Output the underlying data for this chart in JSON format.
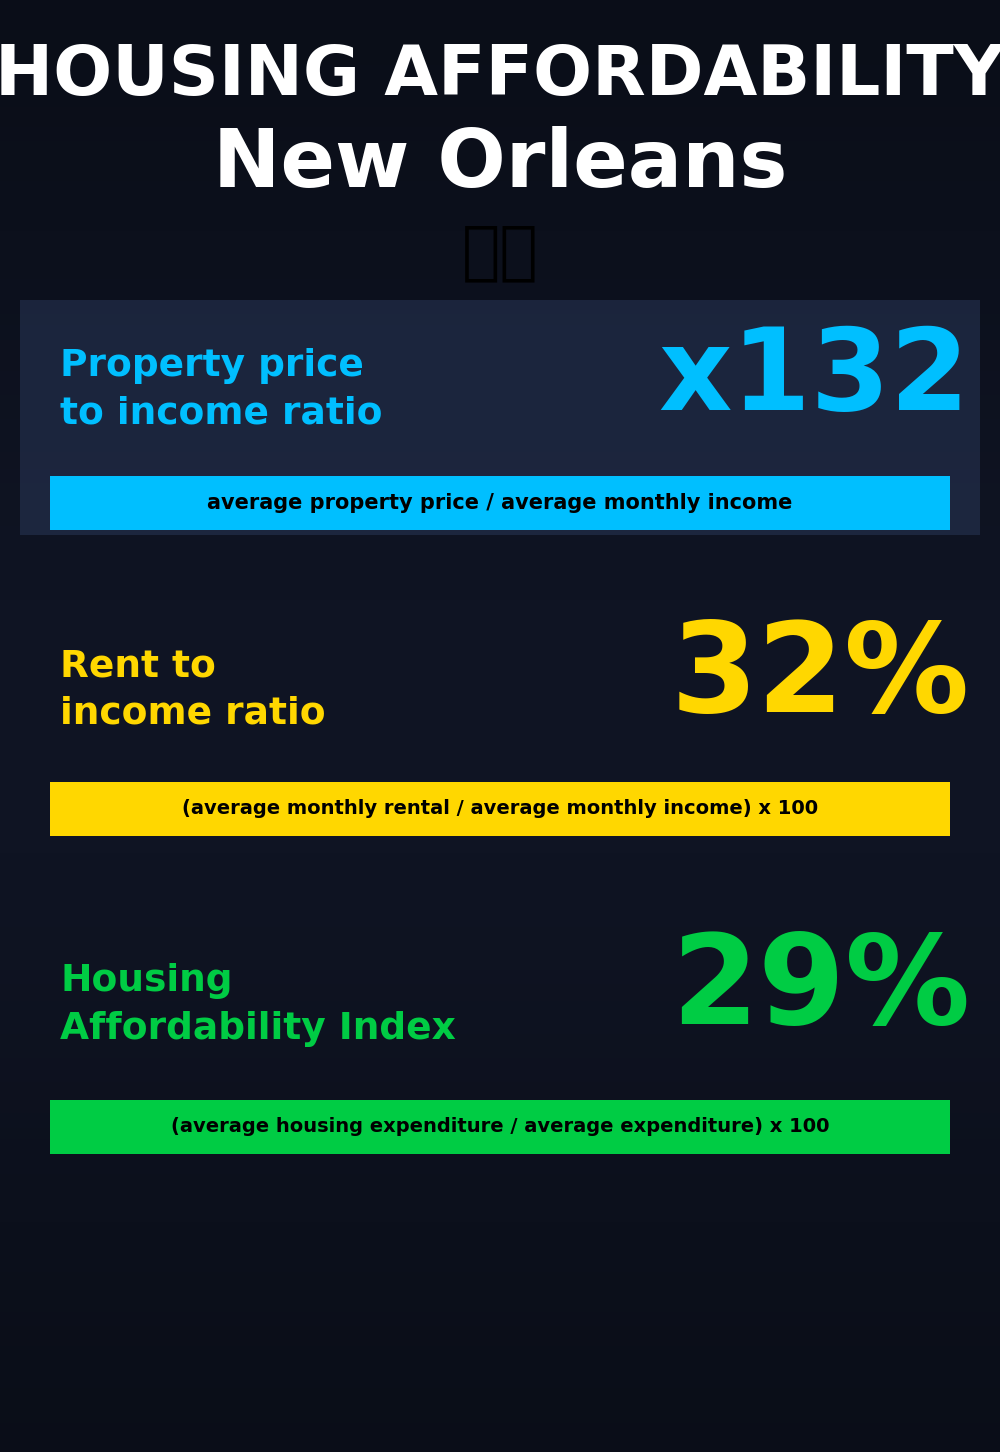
{
  "title_line1": "HOUSING AFFORDABILITY",
  "title_line2": "New Orleans",
  "flag_emoji": "🇺🇸",
  "section1_label": "Property price\nto income ratio",
  "section1_value": "x132",
  "section1_label_color": "#00BFFF",
  "section1_value_color": "#00BFFF",
  "section1_banner_text": "average property price / average monthly income",
  "section1_banner_bg": "#00BFFF",
  "section1_banner_text_color": "#000000",
  "section2_label": "Rent to\nincome ratio",
  "section2_value": "32%",
  "section2_label_color": "#FFD700",
  "section2_value_color": "#FFD700",
  "section2_banner_text": "(average monthly rental / average monthly income) x 100",
  "section2_banner_bg": "#FFD700",
  "section2_banner_text_color": "#000000",
  "section3_label": "Housing\nAffordability Index",
  "section3_value": "29%",
  "section3_label_color": "#00CC44",
  "section3_value_color": "#00CC44",
  "section3_banner_text": "(average housing expenditure / average expenditure) x 100",
  "section3_banner_bg": "#00CC44",
  "section3_banner_text_color": "#000000",
  "bg_color": "#0a1628",
  "title_color": "#FFFFFF",
  "figsize": [
    10.0,
    14.52
  ],
  "dpi": 100
}
